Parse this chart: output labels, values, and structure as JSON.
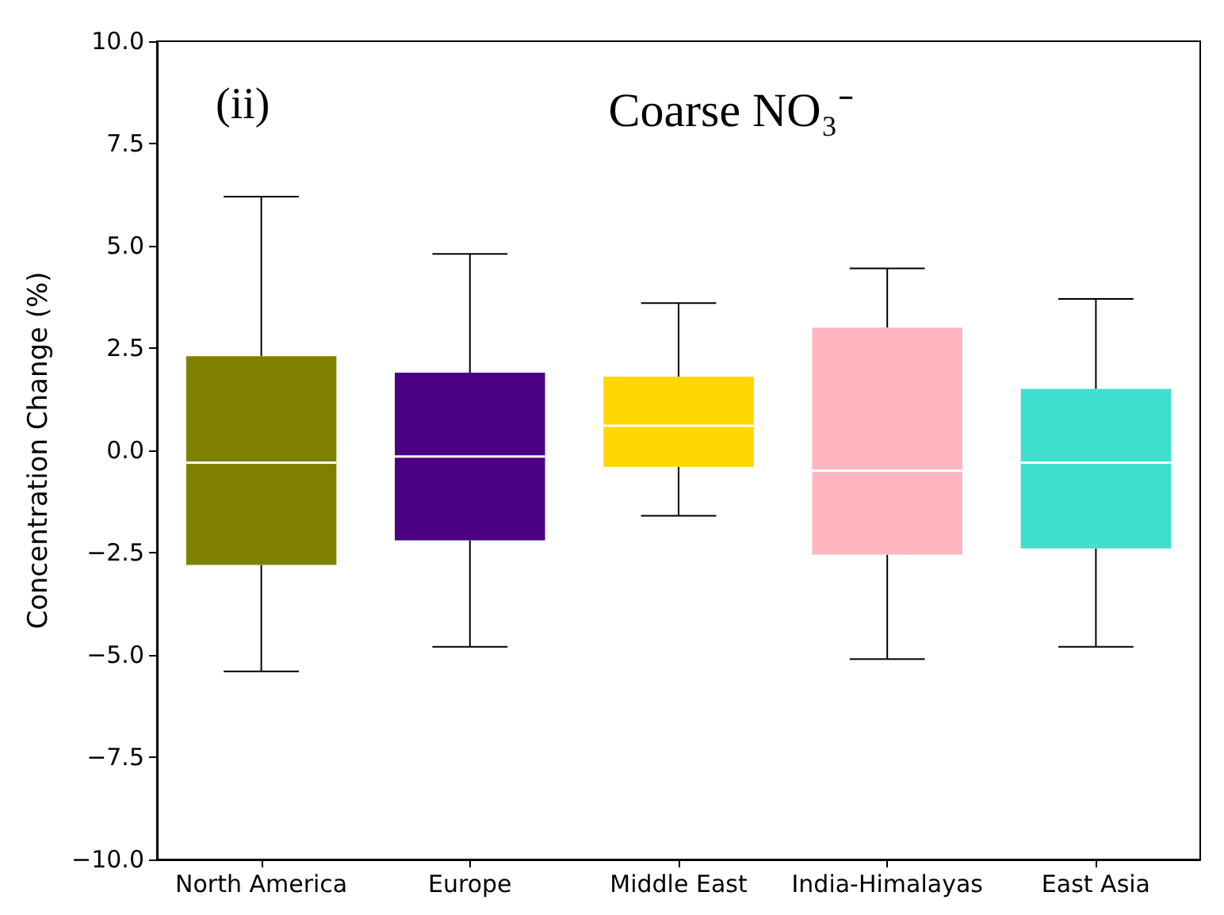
{
  "chart_data": {
    "type": "box",
    "title": "Coarse NO₃⁻",
    "annotations": [
      "(ii)"
    ],
    "ylabel": "Concentration Change (%)",
    "categories": [
      "North America",
      "Europe",
      "Middle East",
      "India-Himalayas",
      "East Asia"
    ],
    "colors": [
      "#808000",
      "#4b0082",
      "#ffd700",
      "#ffb6c1",
      "#40e0d0"
    ],
    "boxes": [
      {
        "low": -5.4,
        "q1": -2.8,
        "median": -0.3,
        "q3": 2.3,
        "high": 6.2
      },
      {
        "low": -4.8,
        "q1": -2.2,
        "median": -0.15,
        "q3": 1.9,
        "high": 4.8
      },
      {
        "low": -1.6,
        "q1": -0.4,
        "median": 0.6,
        "q3": 1.8,
        "high": 3.6
      },
      {
        "low": -5.1,
        "q1": -2.55,
        "median": -0.5,
        "q3": 3.0,
        "high": 4.45
      },
      {
        "low": -4.8,
        "q1": -2.4,
        "median": -0.3,
        "q3": 1.5,
        "high": 3.7
      }
    ],
    "ylim": [
      -10,
      10
    ],
    "yticks": [
      {
        "value": -10,
        "label": "−10.0"
      },
      {
        "value": -7.5,
        "label": "−7.5"
      },
      {
        "value": -5,
        "label": "−5.0"
      },
      {
        "value": -2.5,
        "label": "−2.5"
      },
      {
        "value": 0,
        "label": "0.0"
      },
      {
        "value": 2.5,
        "label": "2.5"
      },
      {
        "value": 5,
        "label": "5.0"
      },
      {
        "value": 7.5,
        "label": "7.5"
      },
      {
        "value": 10,
        "label": "10.0"
      }
    ],
    "grid": false
  }
}
